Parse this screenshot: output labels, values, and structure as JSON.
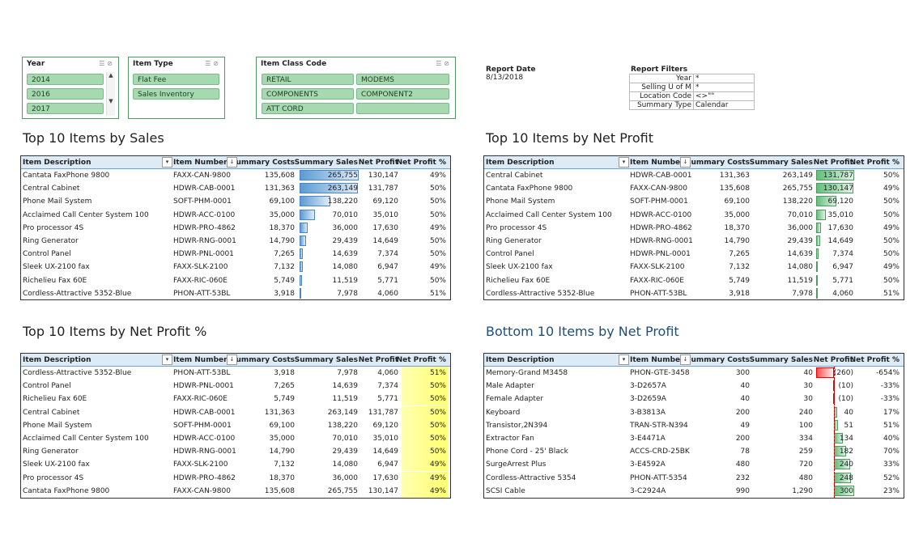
{
  "slicers": {
    "year": {
      "title": "Year",
      "items": [
        "2014",
        "2016",
        "2017"
      ]
    },
    "item_type": {
      "title": "Item Type",
      "items": [
        "Flat Fee",
        "Sales Inventory"
      ]
    },
    "item_class": {
      "title": "Item Class Code",
      "items": [
        "RETAIL",
        "MODEMS",
        "COMPONENTS",
        "COMPONENT2",
        "ATT CORD",
        ""
      ]
    }
  },
  "report": {
    "date_label": "Report Date",
    "date_value": "8/13/2018",
    "filters_label": "Report Filters",
    "filters": [
      {
        "k": "Year",
        "v": "*"
      },
      {
        "k": "Selling U of M",
        "v": "*"
      },
      {
        "k": "Location Code",
        "v": "<>\"\""
      },
      {
        "k": "Summary Type",
        "v": "Calendar"
      }
    ]
  },
  "headers": {
    "desc": "Item Description",
    "num": "Item Number",
    "cost": "Summary Costs",
    "sales": "Summary Sales",
    "profit": "Net Profit",
    "pct": "Net Profit %"
  },
  "tables": {
    "top_sales": {
      "title": "Top 10 Items by Sales",
      "rows": [
        [
          "Cantata FaxPhone 9800",
          "FAXX-CAN-9800",
          "135,608",
          "265,755",
          "130,147",
          "49%"
        ],
        [
          "Central Cabinet",
          "HDWR-CAB-0001",
          "131,363",
          "263,149",
          "131,787",
          "50%"
        ],
        [
          "Phone Mail System",
          "SOFT-PHM-0001",
          "69,100",
          "138,220",
          "69,120",
          "50%"
        ],
        [
          "Acclaimed Call Center System 100",
          "HDWR-ACC-0100",
          "35,000",
          "70,010",
          "35,010",
          "50%"
        ],
        [
          "Pro processor 4S",
          "HDWR-PRO-4862",
          "18,370",
          "36,000",
          "17,630",
          "49%"
        ],
        [
          "Ring Generator",
          "HDWR-RNG-0001",
          "14,790",
          "29,439",
          "14,649",
          "50%"
        ],
        [
          "Control Panel",
          "HDWR-PNL-0001",
          "7,265",
          "14,639",
          "7,374",
          "50%"
        ],
        [
          "Sleek UX-2100 fax",
          "FAXX-SLK-2100",
          "7,132",
          "14,080",
          "6,947",
          "49%"
        ],
        [
          "Richelieu Fax 60E",
          "FAXX-RIC-060E",
          "5,749",
          "11,519",
          "5,771",
          "50%"
        ],
        [
          "Cordless-Attractive 5352-Blue",
          "PHON-ATT-53BL",
          "3,918",
          "7,978",
          "4,060",
          "51%"
        ]
      ],
      "bar_values": [
        265755,
        263149,
        138220,
        70010,
        36000,
        29439,
        14639,
        14080,
        11519,
        7978
      ]
    },
    "top_profit": {
      "title": "Top 10 Items by Net Profit",
      "rows": [
        [
          "Central Cabinet",
          "HDWR-CAB-0001",
          "131,363",
          "263,149",
          "131,787",
          "50%"
        ],
        [
          "Cantata FaxPhone 9800",
          "FAXX-CAN-9800",
          "135,608",
          "265,755",
          "130,147",
          "49%"
        ],
        [
          "Phone Mail System",
          "SOFT-PHM-0001",
          "69,100",
          "138,220",
          "69,120",
          "50%"
        ],
        [
          "Acclaimed Call Center System 100",
          "HDWR-ACC-0100",
          "35,000",
          "70,010",
          "35,010",
          "50%"
        ],
        [
          "Pro processor 4S",
          "HDWR-PRO-4862",
          "18,370",
          "36,000",
          "17,630",
          "49%"
        ],
        [
          "Ring Generator",
          "HDWR-RNG-0001",
          "14,790",
          "29,439",
          "14,649",
          "50%"
        ],
        [
          "Control Panel",
          "HDWR-PNL-0001",
          "7,265",
          "14,639",
          "7,374",
          "50%"
        ],
        [
          "Sleek UX-2100 fax",
          "FAXX-SLK-2100",
          "7,132",
          "14,080",
          "6,947",
          "49%"
        ],
        [
          "Richelieu Fax 60E",
          "FAXX-RIC-060E",
          "5,749",
          "11,519",
          "5,771",
          "50%"
        ],
        [
          "Cordless-Attractive 5352-Blue",
          "PHON-ATT-53BL",
          "3,918",
          "7,978",
          "4,060",
          "51%"
        ]
      ],
      "bar_values": [
        131787,
        130147,
        69120,
        35010,
        17630,
        14649,
        7374,
        6947,
        5771,
        4060
      ]
    },
    "top_pct": {
      "title": "Top 10 Items by Net Profit %",
      "rows": [
        [
          "Cordless-Attractive 5352-Blue",
          "PHON-ATT-53BL",
          "3,918",
          "7,978",
          "4,060",
          "51%"
        ],
        [
          "Control Panel",
          "HDWR-PNL-0001",
          "7,265",
          "14,639",
          "7,374",
          "50%"
        ],
        [
          "Richelieu Fax 60E",
          "FAXX-RIC-060E",
          "5,749",
          "11,519",
          "5,771",
          "50%"
        ],
        [
          "Central Cabinet",
          "HDWR-CAB-0001",
          "131,363",
          "263,149",
          "131,787",
          "50%"
        ],
        [
          "Phone Mail System",
          "SOFT-PHM-0001",
          "69,100",
          "138,220",
          "69,120",
          "50%"
        ],
        [
          "Acclaimed Call Center System 100",
          "HDWR-ACC-0100",
          "35,000",
          "70,010",
          "35,010",
          "50%"
        ],
        [
          "Ring Generator",
          "HDWR-RNG-0001",
          "14,790",
          "29,439",
          "14,649",
          "50%"
        ],
        [
          "Sleek UX-2100 fax",
          "FAXX-SLK-2100",
          "7,132",
          "14,080",
          "6,947",
          "49%"
        ],
        [
          "Pro processor 4S",
          "HDWR-PRO-4862",
          "18,370",
          "36,000",
          "17,630",
          "49%"
        ],
        [
          "Cantata FaxPhone 9800",
          "FAXX-CAN-9800",
          "135,608",
          "265,755",
          "130,147",
          "49%"
        ]
      ],
      "bar_values": [
        51,
        50,
        50,
        50,
        50,
        50,
        50,
        49,
        49,
        49
      ]
    },
    "bottom_profit": {
      "title": "Bottom 10 Items by Net Profit",
      "rows": [
        [
          "Memory-Grand M3458",
          "PHON-GTE-3458",
          "300",
          "40",
          "(260)",
          "-654%"
        ],
        [
          "Male Adapter",
          "3-D2657A",
          "40",
          "30",
          "(10)",
          "-33%"
        ],
        [
          "Female Adapter",
          "3-D2659A",
          "40",
          "30",
          "(10)",
          "-33%"
        ],
        [
          "Keyboard",
          "3-B3813A",
          "200",
          "240",
          "40",
          "17%"
        ],
        [
          "Transistor,2N394",
          "TRAN-STR-N394",
          "49",
          "100",
          "51",
          "51%"
        ],
        [
          "Extractor Fan",
          "3-E4471A",
          "200",
          "334",
          "134",
          "40%"
        ],
        [
          "Phone Cord - 25' Black",
          "ACCS-CRD-25BK",
          "78",
          "259",
          "182",
          "70%"
        ],
        [
          "SurgeArrest Plus",
          "3-E4592A",
          "480",
          "720",
          "240",
          "33%"
        ],
        [
          "Cordless-Attractive 5354",
          "PHON-ATT-5354",
          "232",
          "480",
          "248",
          "52%"
        ],
        [
          "SCSI Cable",
          "3-C2924A",
          "990",
          "1,290",
          "300",
          "23%"
        ]
      ],
      "bar_values": [
        -260,
        -10,
        -10,
        40,
        51,
        134,
        182,
        240,
        248,
        300
      ]
    }
  },
  "colors": {
    "sales_bar": "#5b9bd5",
    "profit_bar": "#63be7b",
    "negative_bar": "#ff4d4d",
    "pct_fill": "#ffff70",
    "header_bg": "#ddebf7",
    "slicer_btn": "#a7d9b0"
  },
  "icons": {
    "multiselect": "multi-select-icon",
    "clear": "clear-filter-icon",
    "filter": "filter-dropdown-icon",
    "sort": "sort-dropdown-icon"
  }
}
